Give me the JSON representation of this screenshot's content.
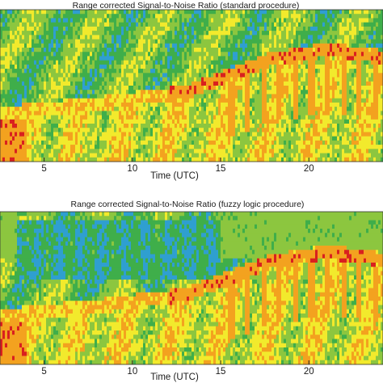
{
  "chart_data": [
    {
      "type": "heatmap",
      "title": "Range corrected Signal-to-Noise Ratio (standard procedure)",
      "xlabel": "Time (UTC)",
      "ylabel": "",
      "xticks": [
        5,
        10,
        15,
        20
      ],
      "xlim": [
        2.5,
        24.2
      ],
      "colormap": [
        "#2f9fd0",
        "#3fae4a",
        "#8cc63f",
        "#f2ea2c",
        "#f3a21f",
        "#d9201f"
      ],
      "grid": false,
      "legend": "none"
    },
    {
      "type": "heatmap",
      "title": "Range corrected Signal-to-Noise Ratio (fuzzy logic procedure)",
      "xlabel": "Time (UTC)",
      "ylabel": "",
      "xticks": [
        5,
        10,
        15,
        20
      ],
      "xlim": [
        2.5,
        24.2
      ],
      "colormap": [
        "#2f9fd0",
        "#3fae4a",
        "#8cc63f",
        "#f2ea2c",
        "#f3a21f",
        "#d9201f"
      ],
      "grid": false,
      "legend": "none"
    }
  ]
}
